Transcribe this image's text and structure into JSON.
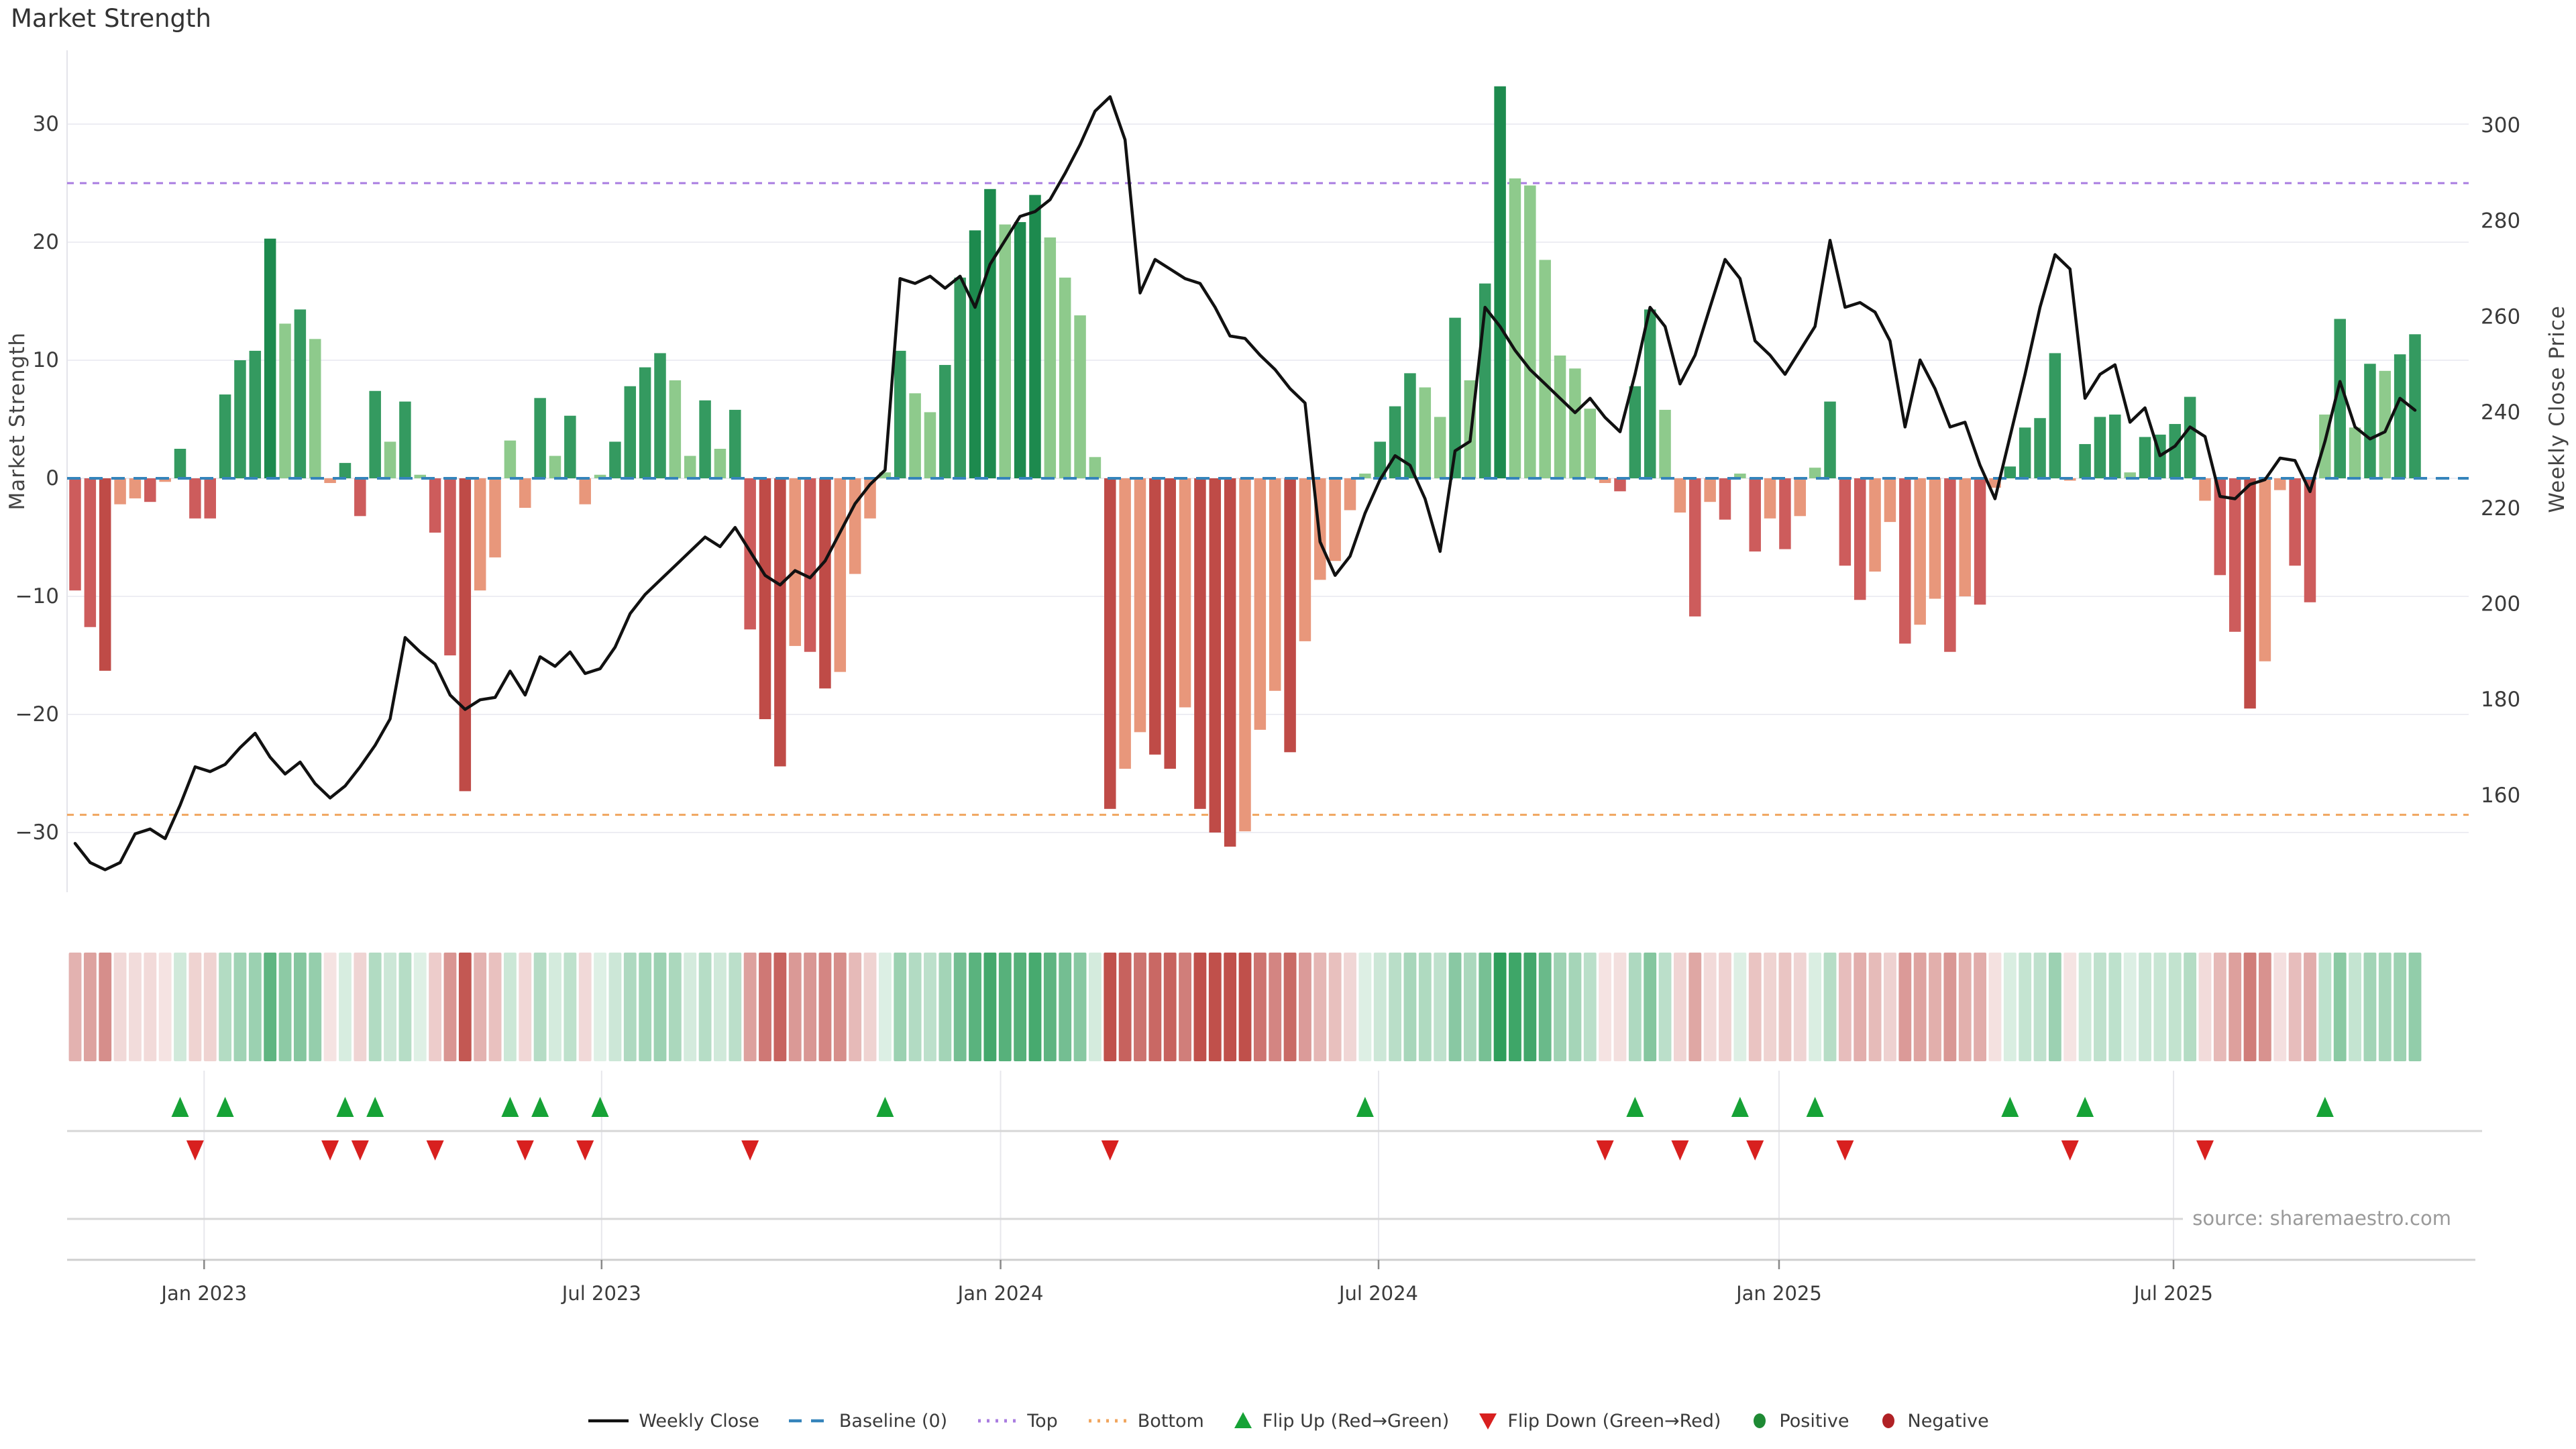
{
  "header": {
    "title": "Market Strength"
  },
  "footer": {
    "source": "source: sharemaestro.com"
  },
  "legend": {
    "items": [
      {
        "label": "Weekly Close",
        "marker": "line",
        "color": "#111111"
      },
      {
        "label": "Baseline (0)",
        "marker": "dashed-line",
        "color": "#3584bb"
      },
      {
        "label": "Top",
        "marker": "dotted-line",
        "color": "#a97ce0"
      },
      {
        "label": "Bottom",
        "marker": "dotted-line",
        "color": "#f0a55e"
      },
      {
        "label": "Flip Up (Red→Green)",
        "marker": "triangle-up",
        "color": "#16a236"
      },
      {
        "label": "Flip Down (Green→Red)",
        "marker": "triangle-down",
        "color": "#d8201f"
      },
      {
        "label": "Positive",
        "marker": "dot",
        "color": "#1e8a34"
      },
      {
        "label": "Negative",
        "marker": "dot",
        "color": "#b02125"
      }
    ]
  },
  "colors": {
    "bar_green_dark": "#1d8a4e",
    "bar_green_mid": "#349a60",
    "bar_green_light": "#8eca8c",
    "bar_red_dark": "#bf4b47",
    "bar_red_mid": "#cd5c5c",
    "bar_red_light": "#e8977b",
    "weekly_close_line": "#111111",
    "baseline_line": "#3584bb",
    "top_line": "#a97ce0",
    "bottom_line": "#f0a55e",
    "flip_up": "#16a236",
    "flip_down": "#d8201f",
    "grid": "#ededf3",
    "separator": "#d7d7d7",
    "axis_text": "#3b3b3b",
    "tick_mark": "#888888"
  },
  "chart_data": {
    "type": "bar",
    "subtype": "dual-axis bar + line combo with heatmap strip and flip markers",
    "title": "Market Strength",
    "x_unit": "weeks (Nov 2022 – Nov 2025)",
    "x_ticks": [
      {
        "label": "Jan 2023",
        "week": 8.6
      },
      {
        "label": "Jul 2023",
        "week": 35.1
      },
      {
        "label": "Jan 2024",
        "week": 61.7
      },
      {
        "label": "Jul 2024",
        "week": 86.9
      },
      {
        "label": "Jan 2025",
        "week": 113.6
      },
      {
        "label": "Jul 2025",
        "week": 139.9
      }
    ],
    "left_axis": {
      "label": "Market Strength",
      "ticks": [
        30,
        20,
        10,
        0,
        -10,
        -20,
        -30
      ],
      "range": [
        -35.1,
        36.3
      ]
    },
    "right_axis": {
      "label": "Weekly Close Price",
      "ticks": [
        300,
        280,
        260,
        240,
        220,
        200,
        180,
        160
      ],
      "range": [
        139.8,
        315.7
      ]
    },
    "reference_lines": {
      "baseline": 0,
      "top": 25,
      "bottom": -28.5
    },
    "legend_position": "bottom center",
    "grid": "horizontal faint in main plot; vertical faint at month ticks in lower rows",
    "series": [
      {
        "name": "Market Strength",
        "type": "bar",
        "axis": "left",
        "values": [
          -9.5,
          -12.6,
          -16.3,
          -2.2,
          -1.7,
          -2,
          -0.3,
          2.5,
          -3.4,
          -3.4,
          7.1,
          10,
          10.8,
          20.3,
          13.1,
          14.3,
          11.8,
          -0.4,
          1.3,
          -3.2,
          7.4,
          3.1,
          6.5,
          0.3,
          -4.6,
          -15,
          -26.5,
          -9.5,
          -6.7,
          3.2,
          -2.5,
          6.8,
          1.9,
          5.3,
          -2.2,
          0.3,
          3.1,
          7.8,
          9.4,
          10.6,
          8.3,
          1.9,
          6.6,
          2.5,
          5.8,
          -12.8,
          -20.4,
          -24.4,
          -14.2,
          -14.7,
          -17.8,
          -16.4,
          -8.1,
          -3.4,
          0.5,
          10.8,
          7.2,
          5.6,
          9.6,
          17,
          21,
          24.5,
          21.5,
          21.7,
          24,
          20.4,
          17,
          13.8,
          1.8,
          -28,
          -24.6,
          -21.5,
          -23.4,
          -24.6,
          -19.4,
          -28,
          -30,
          -31.2,
          -29.9,
          -21.3,
          -18,
          -23.2,
          -13.8,
          -8.6,
          -7,
          -2.7,
          0.4,
          3.1,
          6.1,
          8.9,
          7.7,
          5.2,
          13.6,
          8.3,
          16.5,
          33.2,
          25.4,
          24.8,
          18.5,
          10.4,
          9.3,
          5.9,
          -0.4,
          -1.1,
          7.8,
          14.3,
          5.8,
          -2.9,
          -11.7,
          -2,
          -3.5,
          0.4,
          -6.2,
          -3.4,
          -6,
          -3.2,
          0.9,
          6.5,
          -7.4,
          -10.3,
          -7.9,
          -3.7,
          -14,
          -12.4,
          -10.2,
          -14.7,
          -10,
          -10.7,
          -0.8,
          1,
          4.3,
          5.1,
          10.6,
          -0.2,
          2.9,
          5.2,
          5.4,
          0.5,
          3.5,
          3.7,
          4.6,
          6.9,
          -1.9,
          -8.2,
          -13,
          -19.5,
          -15.5,
          -1,
          -7.4,
          -10.5,
          5.4,
          13.5,
          4.3,
          9.7,
          9.1,
          10.5,
          12.2
        ]
      },
      {
        "name": "Weekly Close",
        "type": "line",
        "axis": "right",
        "values": [
          150,
          146,
          144.5,
          146,
          152,
          153,
          151,
          158,
          166,
          165,
          166.5,
          170,
          173,
          168,
          164.5,
          167,
          162.5,
          159.5,
          162,
          166,
          170.5,
          176,
          193,
          190,
          187.5,
          181,
          178,
          180,
          180.5,
          186,
          181,
          189,
          187,
          190,
          185.5,
          186.5,
          191,
          198,
          202,
          205,
          208,
          211,
          214,
          212,
          216,
          211,
          206,
          204,
          207,
          205.5,
          209,
          215,
          221,
          225,
          228,
          268,
          267,
          268.5,
          266,
          268.5,
          262,
          271,
          276,
          281,
          282,
          284.5,
          290,
          296,
          303,
          306,
          297,
          265,
          272,
          270,
          268,
          267,
          262,
          256,
          255.5,
          252,
          249,
          245,
          242,
          213,
          206,
          210,
          219,
          226,
          231,
          229,
          222,
          211,
          232,
          234,
          262,
          258,
          253,
          249,
          246,
          243,
          240,
          243,
          239,
          236,
          248,
          262,
          258,
          246,
          252,
          262,
          272,
          268,
          255,
          252,
          248,
          253,
          258,
          276,
          262,
          263,
          261,
          255,
          237,
          251,
          245,
          237,
          238,
          229,
          222,
          235,
          248,
          262,
          273,
          270,
          243,
          248,
          250,
          238,
          241,
          231,
          233,
          237,
          235,
          222.5,
          222,
          225,
          226,
          230.5,
          230,
          223.5,
          234,
          246.5,
          237,
          234.5,
          236,
          243,
          240.5
        ]
      }
    ],
    "heatmap_strip": "weekly bar values repeated as a red–green gradient band (intensity proportional to |value|)",
    "flip_markers": "green up-triangles where bar sign flips red→green; red down-triangles where it flips green→red"
  }
}
